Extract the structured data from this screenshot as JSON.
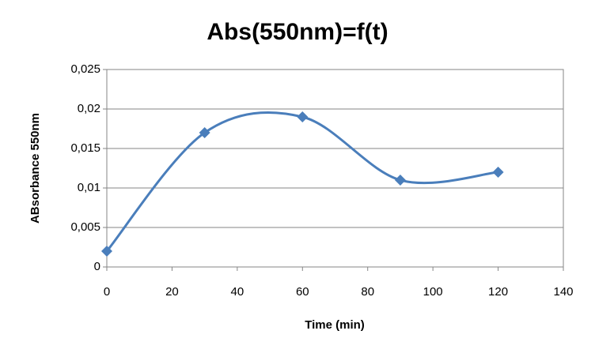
{
  "chart_data": {
    "type": "scatter",
    "smooth": true,
    "title": "Abs(550nm)=f(t)",
    "x_label": "Time (min)",
    "y_label": "ABsorbance 550nm",
    "x": [
      0,
      30,
      60,
      90,
      120
    ],
    "values": [
      0.002,
      0.017,
      0.019,
      0.011,
      0.012
    ],
    "color": "#4a7ebb",
    "xlim": [
      0,
      140
    ],
    "xticks": [
      0,
      20,
      40,
      60,
      80,
      100,
      120,
      140
    ],
    "ylim": [
      0,
      0.025
    ],
    "yticks": [
      0,
      {
        "value": 0.005,
        "label": "0,005"
      },
      {
        "value": 0.01,
        "label": "0,01"
      },
      {
        "value": 0.015,
        "label": "0,015"
      },
      {
        "value": 0.02,
        "label": "0,02"
      },
      {
        "value": 0.025,
        "label": "0,025"
      }
    ],
    "grid": true
  }
}
